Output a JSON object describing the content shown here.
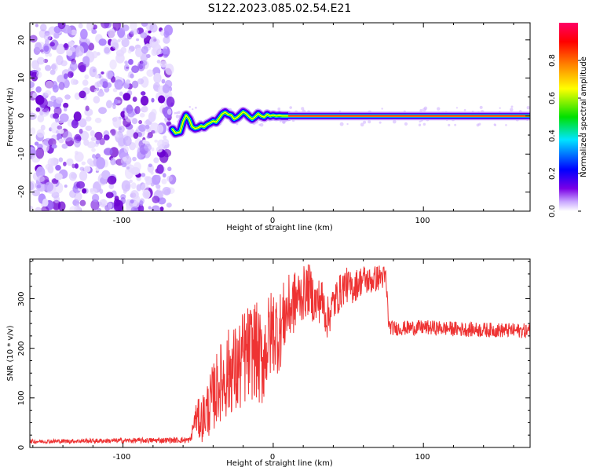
{
  "title": "S122.2023.085.02.54.E21",
  "chart_data": [
    {
      "type": "heatmap",
      "xlabel": "Height of straight line (km)",
      "ylabel": "Frequency (Hz)",
      "xlim": [
        -162,
        171
      ],
      "ylim": [
        -25,
        24.5
      ],
      "xticks": [
        -100,
        0,
        100
      ],
      "yticks": [
        -20,
        -10,
        0,
        10,
        20
      ],
      "noise_region_x": [
        -162,
        -67
      ],
      "carrier_trace": {
        "x": [
          -67,
          -65,
          -62,
          -60,
          -58,
          -56,
          -54,
          -52,
          -50,
          -48,
          -46,
          -44,
          -42,
          -40,
          -38,
          -36,
          -34,
          -32,
          -30,
          -28,
          -26,
          -24,
          -22,
          -20,
          -18,
          -16,
          -14,
          -12,
          -10,
          -8,
          -6,
          -4,
          -2,
          0,
          2,
          4,
          6,
          8,
          10
        ],
        "y": [
          -3.5,
          -4.5,
          -4.2,
          -1.5,
          0.2,
          -0.8,
          -2.8,
          -3.3,
          -3.1,
          -2.6,
          -2.9,
          -2.2,
          -1.8,
          -1.3,
          -1.6,
          -0.6,
          0.5,
          1.0,
          0.4,
          0.2,
          -0.8,
          -0.4,
          0.3,
          1.1,
          0.6,
          -0.2,
          -0.8,
          -0.2,
          0.6,
          0.0,
          -0.3,
          0.4,
          0.0,
          0.2,
          0.0,
          0.1,
          0.0,
          0.0,
          0.0
        ]
      },
      "steady_carrier": {
        "x_start": 10,
        "x_end": 171,
        "freq": 0
      },
      "colorbar": {
        "label": "Normalized spectral amplitude",
        "range": [
          0.0,
          1.0
        ],
        "ticks": [
          "0.0",
          "0.2",
          "0.4",
          "0.6",
          "0.8"
        ],
        "colors": [
          "#ffffff",
          "#c9a8ff",
          "#7a00e6",
          "#0000ff",
          "#00e5ff",
          "#00e000",
          "#ffff00",
          "#ff8000",
          "#ff0000",
          "#ff0066"
        ]
      },
      "xtick_labels": [
        "-100",
        "0",
        "100"
      ],
      "ytick_labels": [
        "-20",
        "-10",
        "0",
        "10",
        "20"
      ]
    },
    {
      "type": "line",
      "xlabel": "Height of straight line (km)",
      "ylabel": "SNR (10 * v/v)",
      "xlim": [
        -162,
        171
      ],
      "ylim": [
        0,
        380
      ],
      "xticks": [
        -100,
        0,
        100
      ],
      "yticks": [
        0,
        100,
        200,
        300
      ],
      "xtick_labels": [
        "-100",
        "0",
        "100"
      ],
      "ytick_labels": [
        "0",
        "100",
        "200",
        "300"
      ],
      "color": "#ee3333",
      "trend": {
        "x": [
          -162,
          -55,
          -52,
          -48,
          -44,
          -40,
          -36,
          -32,
          -28,
          -24,
          -20,
          -16,
          -12,
          -8,
          -4,
          0,
          4,
          8,
          12,
          16,
          20,
          24,
          28,
          32,
          36,
          40,
          44,
          48,
          52,
          56,
          60,
          64,
          68,
          72,
          75,
          77,
          80,
          100,
          130,
          171
        ],
        "y": [
          12,
          15,
          60,
          55,
          75,
          100,
          130,
          140,
          160,
          150,
          180,
          190,
          200,
          170,
          210,
          240,
          230,
          270,
          285,
          300,
          310,
          320,
          290,
          300,
          260,
          290,
          310,
          330,
          320,
          330,
          340,
          335,
          340,
          345,
          340,
          245,
          240,
          242,
          238,
          235
        ]
      },
      "noise_amplitude": {
        "x": [
          -162,
          -55,
          -50,
          -40,
          -30,
          -20,
          -10,
          0,
          10,
          20,
          40,
          60,
          76,
          77,
          171
        ],
        "y": [
          4,
          6,
          40,
          70,
          90,
          100,
          100,
          90,
          70,
          55,
          40,
          30,
          25,
          15,
          15
        ]
      }
    }
  ]
}
